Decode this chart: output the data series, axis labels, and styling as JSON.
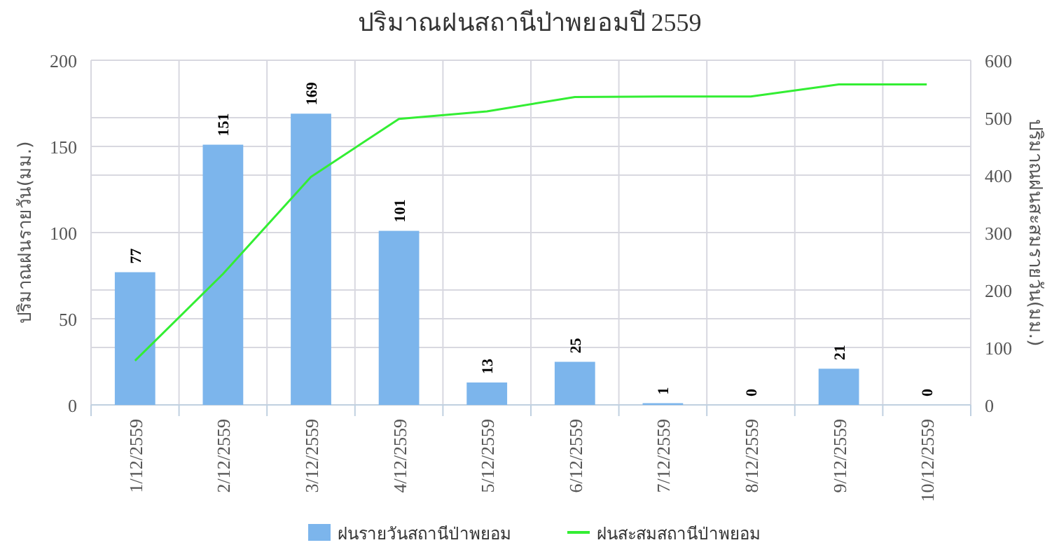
{
  "chart_data": {
    "type": "bar",
    "title": "ปริมาณฝนสถานีป่าพยอมปี 2559",
    "ylabel": "ปริมาณฝนรายวัน(มม.)",
    "y2label": "ปริมาณฝนสะสมรายวัน(มม.)",
    "categories": [
      "1/12/2559",
      "2/12/2559",
      "3/12/2559",
      "4/12/2559",
      "5/12/2559",
      "6/12/2559",
      "7/12/2559",
      "8/12/2559",
      "9/12/2559",
      "10/12/2559"
    ],
    "series": [
      {
        "name": "ฝนรายวันสถานีป่าพยอม",
        "color": "#7cb5ec",
        "values": [
          77,
          151,
          169,
          101,
          13,
          25,
          1,
          0,
          21,
          0
        ],
        "data_labels": true
      },
      {
        "name": "ฝนสะสมสถานีป่าพยอม",
        "type": "line",
        "axis": "y2",
        "color": "#33ee33",
        "marker": "none",
        "values": [
          77,
          228,
          397,
          498,
          511,
          536,
          537,
          537,
          558,
          558
        ]
      }
    ],
    "ylim": [
      0,
      200
    ],
    "yticks": [
      0,
      50,
      100,
      150,
      200
    ],
    "y2lim": [
      0,
      600
    ],
    "y2ticks": [
      0,
      100,
      200,
      300,
      400,
      500,
      600
    ],
    "grid": true,
    "legend": "bottom"
  }
}
